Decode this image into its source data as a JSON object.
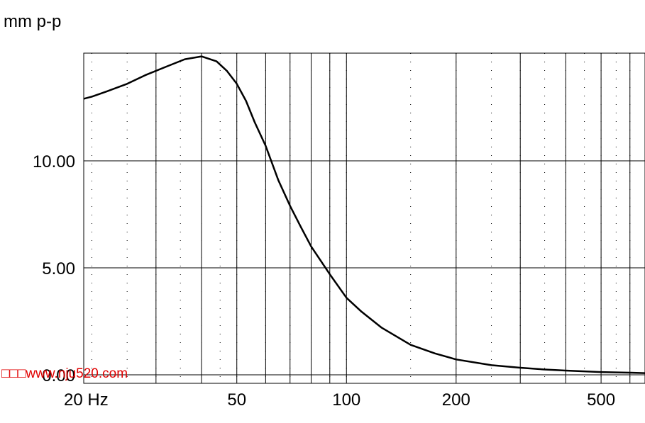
{
  "chart_data": {
    "type": "line",
    "title": "",
    "ylabel": "mm p-p",
    "xlabel": "",
    "x_scale": "log",
    "xlim": [
      19,
      660
    ],
    "ylim": [
      0,
      14.9
    ],
    "x_ticks": [
      {
        "value": 20,
        "label": "20 Hz"
      },
      {
        "value": 50,
        "label": "50"
      },
      {
        "value": 100,
        "label": "100"
      },
      {
        "value": 200,
        "label": "200"
      },
      {
        "value": 500,
        "label": "500"
      }
    ],
    "y_ticks": [
      {
        "value": 0,
        "label": "0.00"
      },
      {
        "value": 5,
        "label": "5.00"
      },
      {
        "value": 10,
        "label": "10.00"
      }
    ],
    "grid": true,
    "series": [
      {
        "color": "#000000",
        "x": [
          19,
          20,
          22,
          25,
          28,
          32,
          36,
          40,
          44,
          47,
          50,
          53,
          56,
          60,
          65,
          70,
          75,
          80,
          90,
          100,
          110,
          125,
          150,
          175,
          200,
          250,
          300,
          350,
          400,
          500,
          600,
          660
        ],
        "y": [
          12.9,
          13.0,
          13.25,
          13.6,
          14.0,
          14.4,
          14.75,
          14.88,
          14.65,
          14.2,
          13.6,
          12.8,
          11.8,
          10.7,
          9.1,
          7.9,
          6.9,
          6.0,
          4.7,
          3.6,
          2.95,
          2.2,
          1.4,
          1.0,
          0.72,
          0.45,
          0.33,
          0.25,
          0.2,
          0.13,
          0.1,
          0.08
        ]
      }
    ]
  },
  "watermark": {
    "text": "□□□www.nju520.com",
    "color": "#e00000"
  }
}
